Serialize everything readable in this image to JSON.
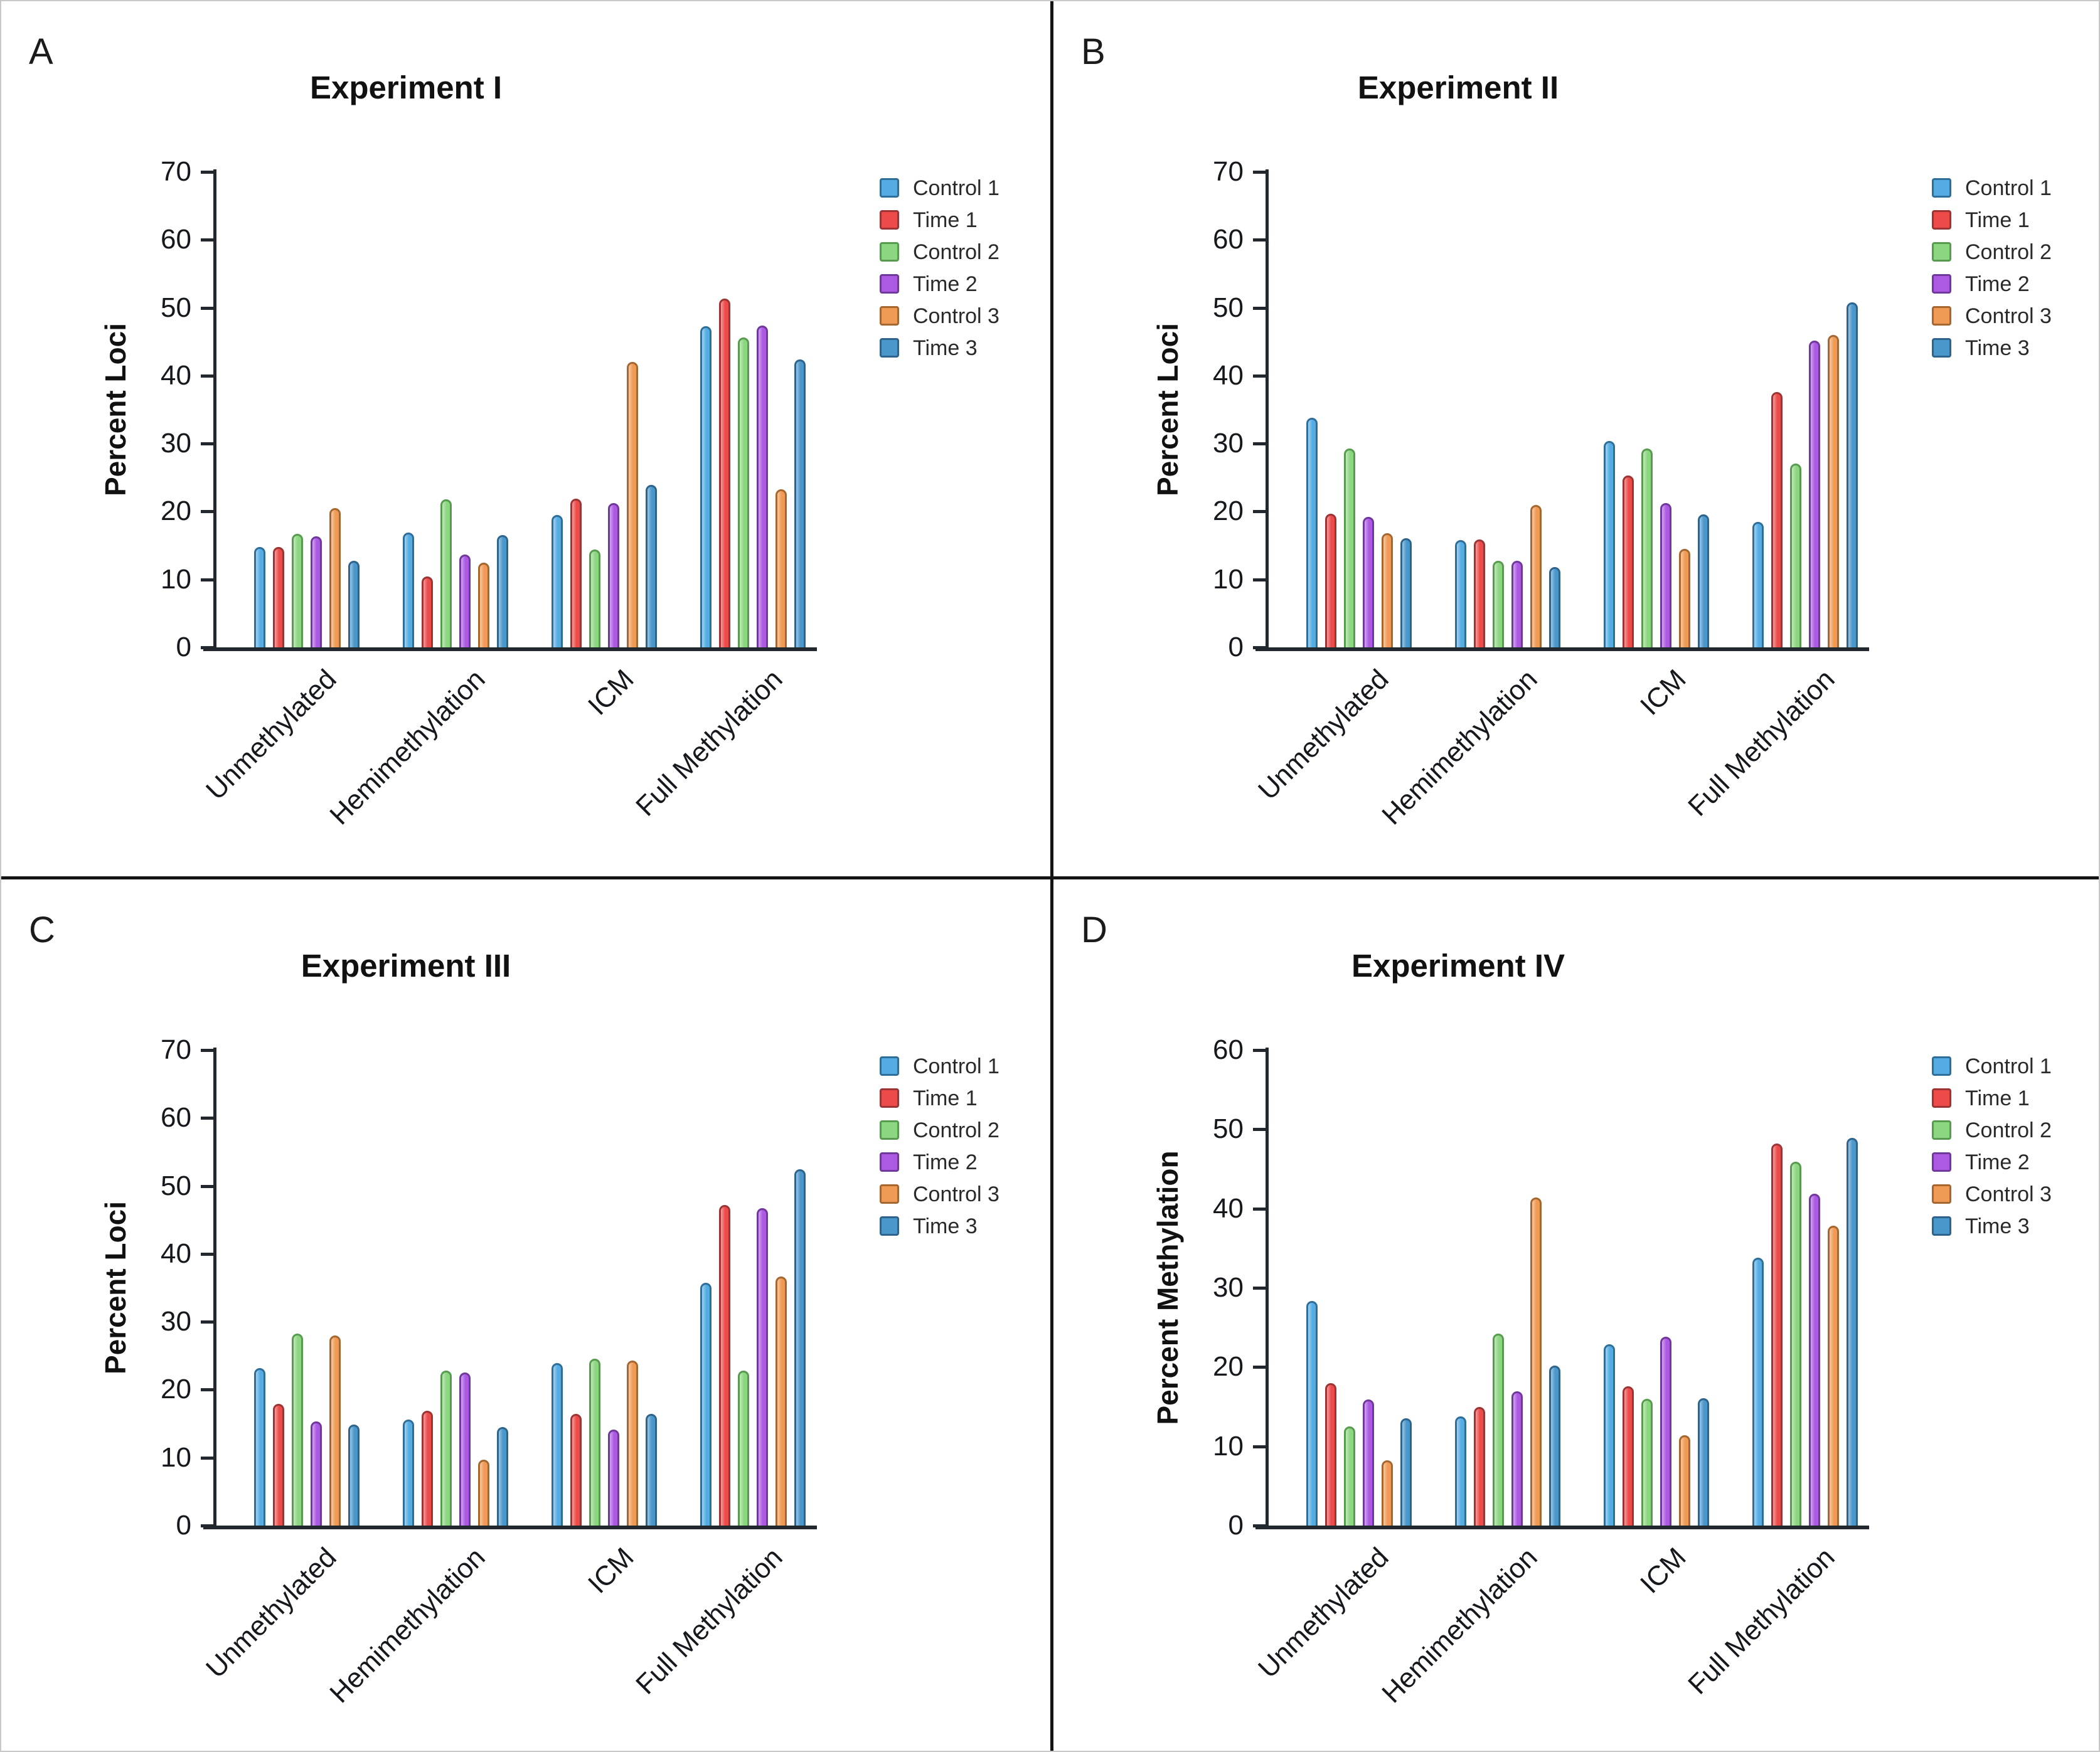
{
  "figure": {
    "panel_letters": [
      "A",
      "B",
      "C",
      "D"
    ],
    "background": "#ffffff",
    "divider_color": "#141414",
    "axis_color": "#23272e",
    "text_color": "#1b1b1b",
    "series_styles": [
      {
        "name": "Control 1",
        "fill": "#55ACE3",
        "stroke": "#2E6E99"
      },
      {
        "name": "Time 1",
        "fill": "#ED4A4A",
        "stroke": "#9C3434"
      },
      {
        "name": "Control 2",
        "fill": "#8DD681",
        "stroke": "#579B4E"
      },
      {
        "name": "Time 2",
        "fill": "#AC59E4",
        "stroke": "#70389B"
      },
      {
        "name": "Control 3",
        "fill": "#F09B55",
        "stroke": "#A5672F"
      },
      {
        "name": "Time 3",
        "fill": "#4A97CB",
        "stroke": "#2E648C"
      }
    ]
  },
  "chart_data": [
    {
      "type": "bar",
      "panel": "A",
      "title": "Experiment I",
      "xlabel": "",
      "ylabel": "Percent Loci",
      "ylim": [
        0,
        70
      ],
      "ytick_step": 10,
      "grid": false,
      "legend_position": "right",
      "categories": [
        "Unmethylated",
        "Hemimethylation",
        "ICM",
        "Full Methylation"
      ],
      "series": [
        {
          "name": "Control 1",
          "values": [
            14.8,
            16.9,
            19.5,
            47.3
          ]
        },
        {
          "name": "Time 1",
          "values": [
            14.8,
            10.4,
            21.9,
            51.3
          ]
        },
        {
          "name": "Control 2",
          "values": [
            16.7,
            21.8,
            14.4,
            45.6
          ]
        },
        {
          "name": "Time 2",
          "values": [
            16.3,
            13.7,
            21.2,
            47.4
          ]
        },
        {
          "name": "Control 3",
          "values": [
            20.5,
            12.5,
            42.0,
            23.3
          ]
        },
        {
          "name": "Time 3",
          "values": [
            12.7,
            16.5,
            23.9,
            42.4
          ]
        }
      ]
    },
    {
      "type": "bar",
      "panel": "B",
      "title": "Experiment II",
      "xlabel": "",
      "ylabel": "Percent Loci",
      "ylim": [
        0,
        70
      ],
      "ytick_step": 10,
      "grid": false,
      "legend_position": "right",
      "categories": [
        "Unmethylated",
        "Hemimethylation",
        "ICM",
        "Full Methylation"
      ],
      "series": [
        {
          "name": "Control 1",
          "values": [
            33.8,
            15.8,
            30.4,
            18.5
          ]
        },
        {
          "name": "Time 1",
          "values": [
            19.7,
            15.9,
            25.3,
            37.6
          ]
        },
        {
          "name": "Control 2",
          "values": [
            29.3,
            12.7,
            29.3,
            27.1
          ]
        },
        {
          "name": "Time 2",
          "values": [
            19.2,
            12.7,
            21.2,
            45.2
          ]
        },
        {
          "name": "Control 3",
          "values": [
            16.8,
            21.0,
            14.5,
            46.0
          ]
        },
        {
          "name": "Time 3",
          "values": [
            16.1,
            11.8,
            19.6,
            50.8
          ]
        }
      ]
    },
    {
      "type": "bar",
      "panel": "C",
      "title": "Experiment III",
      "xlabel": "",
      "ylabel": "Percent Loci",
      "ylim": [
        0,
        70
      ],
      "ytick_step": 10,
      "grid": false,
      "legend_position": "right",
      "categories": [
        "Unmethylated",
        "Hemimethylation",
        "ICM",
        "Full Methylation"
      ],
      "series": [
        {
          "name": "Control 1",
          "values": [
            23.2,
            15.6,
            23.9,
            35.7
          ]
        },
        {
          "name": "Time 1",
          "values": [
            17.9,
            16.9,
            16.4,
            47.2
          ]
        },
        {
          "name": "Control 2",
          "values": [
            28.3,
            22.8,
            24.6,
            22.8
          ]
        },
        {
          "name": "Time 2",
          "values": [
            15.3,
            22.5,
            14.1,
            46.7
          ]
        },
        {
          "name": "Control 3",
          "values": [
            28.0,
            9.7,
            24.3,
            36.7
          ]
        },
        {
          "name": "Time 3",
          "values": [
            14.9,
            14.5,
            16.4,
            52.5
          ]
        }
      ]
    },
    {
      "type": "bar",
      "panel": "D",
      "title": "Experiment IV",
      "xlabel": "",
      "ylabel": "Percent Methylation",
      "ylim": [
        0,
        60
      ],
      "ytick_step": 10,
      "grid": false,
      "legend_position": "right",
      "categories": [
        "Unmethylated",
        "Hemimethylation",
        "ICM",
        "Full Methylation"
      ],
      "series": [
        {
          "name": "Control 1",
          "values": [
            28.3,
            13.8,
            22.9,
            33.8
          ]
        },
        {
          "name": "Time 1",
          "values": [
            18.0,
            15.0,
            17.6,
            48.2
          ]
        },
        {
          "name": "Control 2",
          "values": [
            12.5,
            24.2,
            16.0,
            45.9
          ]
        },
        {
          "name": "Time 2",
          "values": [
            15.9,
            16.9,
            23.8,
            41.9
          ]
        },
        {
          "name": "Control 3",
          "values": [
            8.2,
            41.4,
            11.4,
            37.8
          ]
        },
        {
          "name": "Time 3",
          "values": [
            13.5,
            20.2,
            16.1,
            48.9
          ]
        }
      ]
    }
  ]
}
